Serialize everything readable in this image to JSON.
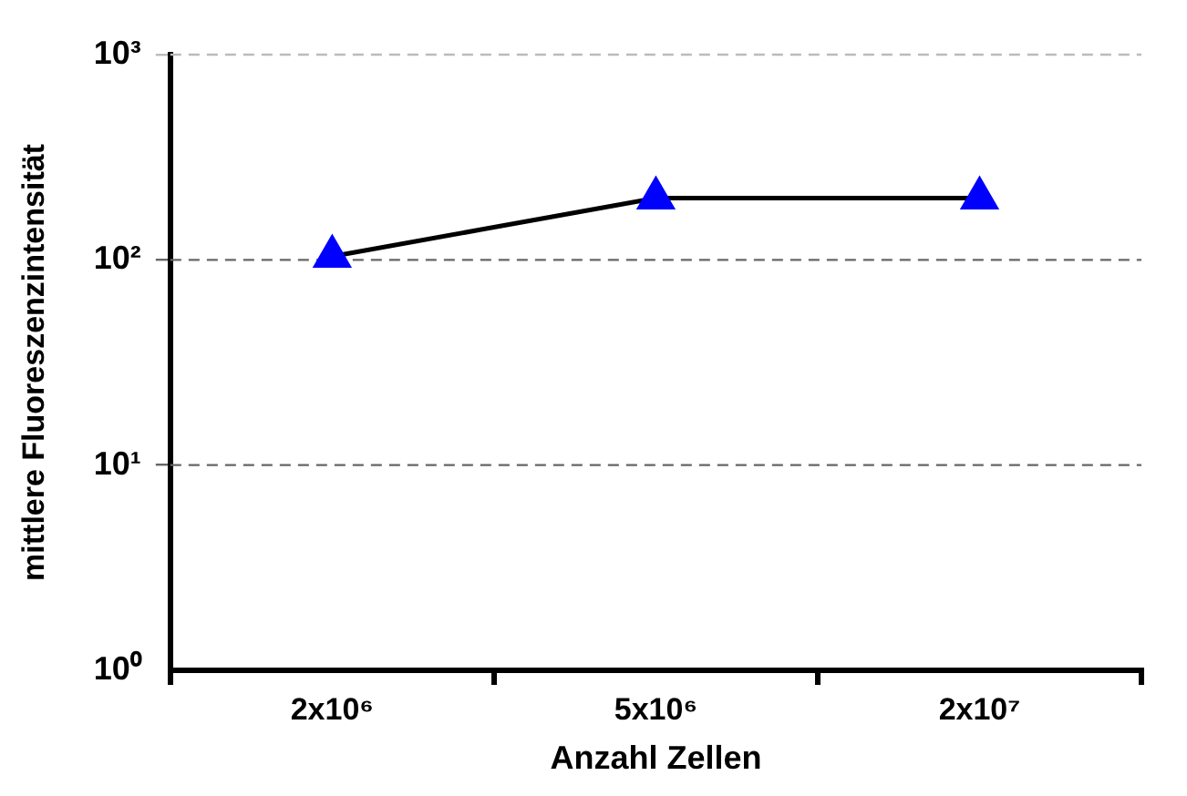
{
  "chart_data": {
    "type": "line",
    "xlabel": "Anzahl Zellen",
    "ylabel": "mittlere Fluoreszenzintensität",
    "categories": [
      "2x10⁶",
      "5x10⁶",
      "2x10⁷"
    ],
    "series": [
      {
        "color": "#0000ff",
        "values": [
          104,
          200,
          200
        ]
      }
    ],
    "log": "y",
    "ylim": [
      1,
      1000
    ],
    "yticks": [
      {
        "value": 1,
        "label": "10⁰"
      },
      {
        "value": 10,
        "label": "10¹"
      },
      {
        "value": 100,
        "label": "10²"
      },
      {
        "value": 1000,
        "label": "10³"
      }
    ],
    "grid": "y",
    "line_style": "solid",
    "marker": "triangle",
    "legend": false
  }
}
